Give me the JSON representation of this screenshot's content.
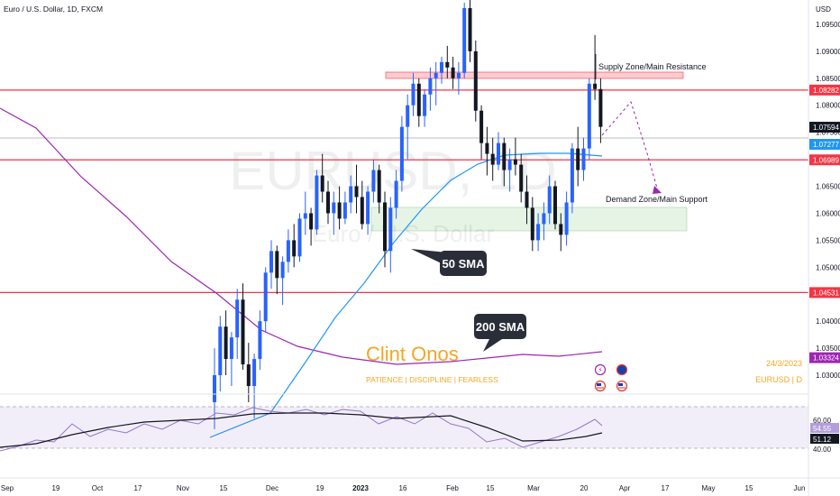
{
  "header": {
    "symbol_title": "Euro / U.S. Dollar, 1D, FXCM",
    "currency": "USD"
  },
  "watermark": {
    "ticker": "EURUSD, 1D",
    "name": "Euro / U.S. Dollar"
  },
  "author": {
    "name": "Clint Onos",
    "tagline": "PATIENCE  |  DISCIPLINE  |  FEARLESS",
    "date": "24/3/2023",
    "symbol": "EURUSD  |  D"
  },
  "annotations": {
    "supply_label": "Supply Zone/Main Resistance",
    "demand_label": "Demand Zone/Main Support",
    "sma50_label": "50 SMA",
    "sma200_label": "200 SMA"
  },
  "colors": {
    "up": "#2962ff",
    "down": "#131722",
    "resistance": "#f23645",
    "sma50": "#2196f3",
    "sma200": "#9c27b0",
    "author": "#f5a623"
  },
  "chart_data": {
    "type": "candlestick",
    "ylim": [
      1.0265,
      1.0995
    ],
    "y_ticks": [
      "1.09500",
      "1.09000",
      "1.08500",
      "1.08000",
      "1.07500",
      "1.07000",
      "1.06500",
      "1.06000",
      "1.05500",
      "1.05000",
      "1.04500",
      "1.04000",
      "1.03500",
      "1.03000"
    ],
    "y_tick_values": [
      1.095,
      1.09,
      1.085,
      1.08,
      1.075,
      1.07,
      1.065,
      1.06,
      1.055,
      1.05,
      1.045,
      1.04,
      1.035,
      1.03
    ],
    "x_ticks": [
      "Sep",
      "19",
      "Oct",
      "17",
      "Nov",
      "15",
      "Dec",
      "19",
      "2023",
      "16",
      "Feb",
      "15",
      "Mar",
      "20",
      "Apr",
      "17",
      "May",
      "15",
      "Jun"
    ],
    "horizontal_levels": [
      {
        "value": 1.08282,
        "label": "1.08282"
      },
      {
        "value": 1.06989,
        "label": "1.06989"
      },
      {
        "value": 1.04531,
        "label": "1.04531"
      }
    ],
    "price_labels": [
      {
        "value": 1.07594,
        "label": "1.07594",
        "kind": "last"
      },
      {
        "value": 1.07277,
        "label": "1.07277",
        "kind": "sma50"
      },
      {
        "value": 1.03324,
        "label": "1.03324",
        "kind": "sma200"
      }
    ],
    "zones": [
      {
        "name": "supply",
        "from": 1.0872,
        "to": 1.0882
      },
      {
        "name": "demand",
        "from": 1.0568,
        "to": 1.0623
      }
    ],
    "ohlc": [
      [
        1.025,
        1.035,
        1.02,
        1.03
      ],
      [
        1.03,
        1.041,
        1.027,
        1.039
      ],
      [
        1.039,
        1.042,
        1.03,
        1.033
      ],
      [
        1.033,
        1.038,
        1.028,
        1.037
      ],
      [
        1.037,
        1.046,
        1.033,
        1.044
      ],
      [
        1.044,
        1.047,
        1.031,
        1.032
      ],
      [
        1.032,
        1.036,
        1.025,
        1.028
      ],
      [
        1.028,
        1.034,
        1.022,
        1.033
      ],
      [
        1.033,
        1.042,
        1.031,
        1.04
      ],
      [
        1.04,
        1.05,
        1.038,
        1.049
      ],
      [
        1.049,
        1.055,
        1.046,
        1.053
      ],
      [
        1.053,
        1.054,
        1.045,
        1.048
      ],
      [
        1.048,
        1.052,
        1.043,
        1.051
      ],
      [
        1.051,
        1.057,
        1.049,
        1.055
      ],
      [
        1.055,
        1.058,
        1.05,
        1.052
      ],
      [
        1.052,
        1.06,
        1.051,
        1.059
      ],
      [
        1.059,
        1.064,
        1.056,
        1.06
      ],
      [
        1.06,
        1.061,
        1.054,
        1.057
      ],
      [
        1.057,
        1.068,
        1.056,
        1.067
      ],
      [
        1.067,
        1.071,
        1.062,
        1.064
      ],
      [
        1.064,
        1.066,
        1.058,
        1.06
      ],
      [
        1.06,
        1.064,
        1.056,
        1.062
      ],
      [
        1.062,
        1.065,
        1.057,
        1.059
      ],
      [
        1.059,
        1.064,
        1.058,
        1.062
      ],
      [
        1.062,
        1.067,
        1.06,
        1.065
      ],
      [
        1.065,
        1.069,
        1.06,
        1.063
      ],
      [
        1.063,
        1.066,
        1.057,
        1.058
      ],
      [
        1.058,
        1.065,
        1.056,
        1.064
      ],
      [
        1.064,
        1.07,
        1.062,
        1.068
      ],
      [
        1.068,
        1.069,
        1.06,
        1.062
      ],
      [
        1.062,
        1.064,
        1.05,
        1.053
      ],
      [
        1.053,
        1.063,
        1.049,
        1.061
      ],
      [
        1.061,
        1.068,
        1.059,
        1.066
      ],
      [
        1.066,
        1.078,
        1.064,
        1.076
      ],
      [
        1.076,
        1.082,
        1.07,
        1.08
      ],
      [
        1.08,
        1.086,
        1.078,
        1.084
      ],
      [
        1.084,
        1.085,
        1.076,
        1.078
      ],
      [
        1.078,
        1.083,
        1.076,
        1.082
      ],
      [
        1.082,
        1.087,
        1.079,
        1.085
      ],
      [
        1.085,
        1.088,
        1.08,
        1.086
      ],
      [
        1.086,
        1.089,
        1.084,
        1.088
      ],
      [
        1.088,
        1.091,
        1.085,
        1.087
      ],
      [
        1.087,
        1.089,
        1.083,
        1.085
      ],
      [
        1.085,
        1.088,
        1.082,
        1.086
      ],
      [
        1.086,
        1.099,
        1.085,
        1.098
      ],
      [
        1.098,
        1.103,
        1.088,
        1.09
      ],
      [
        1.09,
        1.092,
        1.077,
        1.079
      ],
      [
        1.079,
        1.08,
        1.07,
        1.073
      ],
      [
        1.073,
        1.076,
        1.067,
        1.071
      ],
      [
        1.071,
        1.074,
        1.066,
        1.069
      ],
      [
        1.069,
        1.075,
        1.068,
        1.073
      ],
      [
        1.073,
        1.074,
        1.065,
        1.068
      ],
      [
        1.068,
        1.072,
        1.064,
        1.07
      ],
      [
        1.07,
        1.074,
        1.067,
        1.069
      ],
      [
        1.069,
        1.071,
        1.062,
        1.064
      ],
      [
        1.064,
        1.067,
        1.058,
        1.061
      ],
      [
        1.061,
        1.063,
        1.053,
        1.055
      ],
      [
        1.055,
        1.06,
        1.053,
        1.058
      ],
      [
        1.058,
        1.062,
        1.055,
        1.06
      ],
      [
        1.06,
        1.067,
        1.058,
        1.065
      ],
      [
        1.065,
        1.066,
        1.057,
        1.058
      ],
      [
        1.058,
        1.06,
        1.053,
        1.056
      ],
      [
        1.056,
        1.064,
        1.054,
        1.062
      ],
      [
        1.062,
        1.073,
        1.06,
        1.072
      ],
      [
        1.072,
        1.076,
        1.065,
        1.068
      ],
      [
        1.068,
        1.074,
        1.066,
        1.072
      ],
      [
        1.072,
        1.085,
        1.07,
        1.084
      ],
      [
        1.084,
        1.093,
        1.081,
        1.083
      ],
      [
        1.083,
        1.085,
        1.073,
        1.076
      ]
    ],
    "sma50": [
      [
        233,
        485
      ],
      [
        300,
        458
      ],
      [
        340,
        400
      ],
      [
        372,
        352
      ],
      [
        404,
        314
      ],
      [
        436,
        270
      ],
      [
        468,
        232
      ],
      [
        500,
        200
      ],
      [
        530,
        182
      ],
      [
        560,
        172
      ],
      [
        600,
        170
      ],
      [
        630,
        170
      ],
      [
        668,
        173
      ]
    ],
    "sma200": [
      [
        0,
        120
      ],
      [
        40,
        142
      ],
      [
        90,
        196
      ],
      [
        140,
        240
      ],
      [
        190,
        290
      ],
      [
        240,
        325
      ],
      [
        290,
        366
      ],
      [
        330,
        384
      ],
      [
        380,
        396
      ],
      [
        440,
        404
      ],
      [
        500,
        401
      ],
      [
        540,
        397
      ],
      [
        580,
        393
      ],
      [
        620,
        395
      ],
      [
        668,
        390
      ]
    ],
    "projection": [
      [
        668,
        150
      ],
      [
        700,
        113
      ],
      [
        718,
        170
      ],
      [
        730,
        212
      ]
    ],
    "rsi": {
      "levels": [
        60,
        40
      ],
      "labels": [
        "60.00",
        "40.00"
      ],
      "value_labels": [
        "54.55",
        "51.12"
      ],
      "rsi_line": [
        [
          0,
          500
        ],
        [
          20,
          495
        ],
        [
          40,
          488
        ],
        [
          60,
          490
        ],
        [
          80,
          470
        ],
        [
          100,
          484
        ],
        [
          120,
          476
        ],
        [
          140,
          480
        ],
        [
          160,
          470
        ],
        [
          180,
          476
        ],
        [
          200,
          466
        ],
        [
          220,
          470
        ],
        [
          240,
          458
        ],
        [
          260,
          460
        ],
        [
          280,
          452
        ],
        [
          300,
          456
        ],
        [
          320,
          458
        ],
        [
          340,
          454
        ],
        [
          360,
          460
        ],
        [
          380,
          454
        ],
        [
          400,
          456
        ],
        [
          420,
          470
        ],
        [
          440,
          462
        ],
        [
          460,
          470
        ],
        [
          480,
          458
        ],
        [
          500,
          470
        ],
        [
          520,
          475
        ],
        [
          540,
          490
        ],
        [
          560,
          486
        ],
        [
          580,
          496
        ],
        [
          600,
          490
        ],
        [
          620,
          484
        ],
        [
          640,
          476
        ],
        [
          660,
          465
        ],
        [
          668,
          472
        ]
      ],
      "rsi_ma": [
        [
          0,
          496
        ],
        [
          40,
          492
        ],
        [
          80,
          482
        ],
        [
          120,
          474
        ],
        [
          160,
          468
        ],
        [
          200,
          466
        ],
        [
          240,
          464
        ],
        [
          280,
          459
        ],
        [
          320,
          458
        ],
        [
          360,
          458
        ],
        [
          400,
          460
        ],
        [
          440,
          464
        ],
        [
          480,
          462
        ],
        [
          500,
          461
        ],
        [
          540,
          474
        ],
        [
          580,
          489
        ],
        [
          620,
          488
        ],
        [
          650,
          484
        ],
        [
          668,
          480
        ]
      ]
    }
  }
}
